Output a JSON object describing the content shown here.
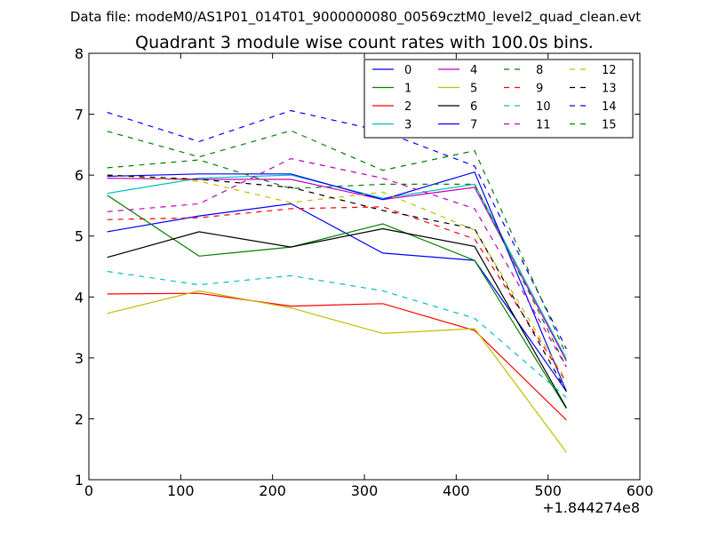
{
  "suptitle": "Data file: modeM0/AS1P01_014T01_9000000080_00569cztM0_level2_quad_clean.evt",
  "chart_data": {
    "type": "line",
    "title": "Quadrant 3 module wise count rates with 100.0s bins.",
    "xlabel": "",
    "ylabel": "",
    "x_offset_label": "+1.844274e8",
    "xlim": [
      0,
      600
    ],
    "ylim": [
      1,
      8
    ],
    "xticks": [
      0,
      100,
      200,
      300,
      400,
      500,
      600
    ],
    "yticks": [
      1,
      2,
      3,
      4,
      5,
      6,
      7,
      8
    ],
    "legend_position": "top-right",
    "legend_columns": 4,
    "x": [
      20,
      120,
      220,
      320,
      420,
      520
    ],
    "series": [
      {
        "name": "0",
        "color": "#0000ff",
        "dash": "solid",
        "values": [
          5.07,
          5.33,
          5.53,
          4.72,
          4.6,
          2.45
        ]
      },
      {
        "name": "1",
        "color": "#008000",
        "dash": "solid",
        "values": [
          5.67,
          4.67,
          4.82,
          5.2,
          4.6,
          2.17
        ]
      },
      {
        "name": "2",
        "color": "#ff0000",
        "dash": "solid",
        "values": [
          4.05,
          4.06,
          3.85,
          3.89,
          3.45,
          1.98
        ]
      },
      {
        "name": "3",
        "color": "#00bfbf",
        "dash": "solid",
        "values": [
          5.7,
          5.95,
          6.0,
          5.62,
          5.85,
          2.98
        ]
      },
      {
        "name": "4",
        "color": "#bf00bf",
        "dash": "solid",
        "values": [
          5.95,
          5.93,
          5.93,
          5.6,
          5.8,
          2.95
        ]
      },
      {
        "name": "5",
        "color": "#bfbf00",
        "dash": "solid",
        "values": [
          3.73,
          4.1,
          3.82,
          3.4,
          3.48,
          1.45
        ]
      },
      {
        "name": "6",
        "color": "#000000",
        "dash": "solid",
        "values": [
          4.65,
          5.07,
          4.82,
          5.12,
          4.83,
          2.18
        ]
      },
      {
        "name": "7",
        "color": "#0000ff",
        "dash": "solid",
        "values": [
          5.98,
          6.02,
          6.02,
          5.6,
          6.05,
          2.45
        ]
      },
      {
        "name": "8",
        "color": "#008000",
        "dash": "dashed",
        "values": [
          6.12,
          6.25,
          5.78,
          5.85,
          5.85,
          2.85
        ]
      },
      {
        "name": "9",
        "color": "#ff0000",
        "dash": "dashed",
        "values": [
          5.27,
          5.3,
          5.45,
          5.48,
          4.95,
          2.6
        ]
      },
      {
        "name": "10",
        "color": "#00bfbf",
        "dash": "dashed",
        "values": [
          4.42,
          4.2,
          4.35,
          4.1,
          3.65,
          2.35
        ]
      },
      {
        "name": "11",
        "color": "#bf00bf",
        "dash": "dashed",
        "values": [
          5.4,
          5.53,
          6.27,
          5.95,
          5.45,
          2.85
        ]
      },
      {
        "name": "12",
        "color": "#bfbf00",
        "dash": "dashed",
        "values": [
          6.0,
          5.9,
          5.55,
          5.72,
          5.1,
          2.62
        ]
      },
      {
        "name": "13",
        "color": "#000000",
        "dash": "dashed",
        "values": [
          6.0,
          5.93,
          5.8,
          5.42,
          5.12,
          2.45
        ]
      },
      {
        "name": "14",
        "color": "#0000ff",
        "dash": "dashed",
        "values": [
          7.03,
          6.55,
          7.06,
          6.72,
          6.15,
          3.15
        ]
      },
      {
        "name": "15",
        "color": "#008000",
        "dash": "dashed",
        "values": [
          6.72,
          6.3,
          6.73,
          6.08,
          6.4,
          3.05
        ]
      }
    ]
  }
}
